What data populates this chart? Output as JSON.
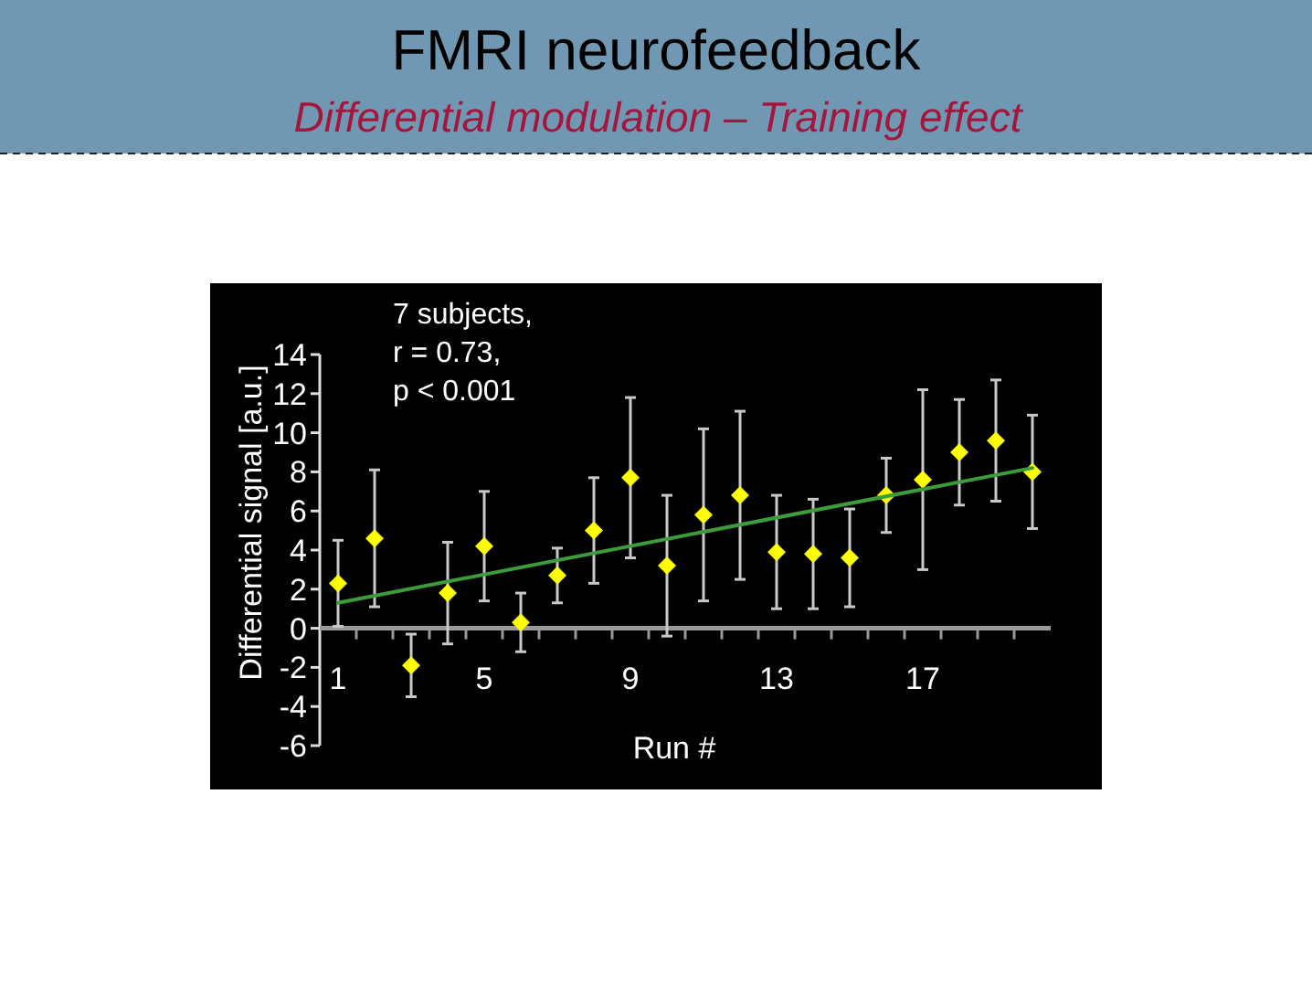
{
  "chart_data": {
    "type": "scatter",
    "title": "FMRI neurofeedback",
    "subtitle": "Differential modulation – Training effect",
    "xlabel": "Run #",
    "ylabel": "Differential signal  [a.u.]",
    "annotations": [
      "7 subjects,",
      "r = 0.73,",
      "p < 0.001"
    ],
    "x": [
      1,
      2,
      3,
      4,
      5,
      6,
      7,
      8,
      9,
      10,
      11,
      12,
      13,
      14,
      15,
      16,
      17,
      18,
      19,
      20
    ],
    "series": [
      {
        "color": "#ffff00",
        "marker": "diamond",
        "values": [
          2.3,
          4.6,
          -1.9,
          1.8,
          4.2,
          0.3,
          2.7,
          5.0,
          7.7,
          3.2,
          5.8,
          6.8,
          3.9,
          3.8,
          3.6,
          6.8,
          7.6,
          9.0,
          9.6,
          8.0
        ],
        "errors": [
          2.2,
          3.5,
          1.6,
          2.6,
          2.8,
          1.5,
          1.4,
          2.7,
          4.1,
          3.6,
          4.4,
          4.3,
          2.9,
          2.8,
          2.5,
          1.9,
          4.6,
          2.7,
          3.1,
          2.9
        ]
      },
      {
        "type": "line",
        "color": "#3c9c3c",
        "x": [
          1,
          20
        ],
        "values": [
          1.3,
          8.2
        ]
      }
    ],
    "xlim": [
      0.5,
      20.5
    ],
    "xticks": [
      1,
      {
        "value": 1.5,
        "label": null
      },
      {
        "value": 2.5,
        "label": null
      },
      {
        "value": 3.5,
        "label": null
      },
      {
        "value": 4.5,
        "label": null
      },
      5,
      {
        "value": 5.5,
        "label": null
      },
      {
        "value": 6.5,
        "label": null
      },
      {
        "value": 7.5,
        "label": null
      },
      {
        "value": 8.5,
        "label": null
      },
      9,
      {
        "value": 9.5,
        "label": null
      },
      {
        "value": 10.5,
        "label": null
      },
      {
        "value": 11.5,
        "label": null
      },
      {
        "value": 12.5,
        "label": null
      },
      13,
      {
        "value": 13.5,
        "label": null
      },
      {
        "value": 14.5,
        "label": null
      },
      {
        "value": 15.5,
        "label": null
      },
      {
        "value": 16.5,
        "label": null
      },
      17,
      {
        "value": 17.5,
        "label": null
      },
      {
        "value": 18.5,
        "label": null
      },
      {
        "value": 19.5,
        "label": null
      }
    ],
    "ylim": [
      -6,
      14
    ],
    "yticks": [
      -6,
      -4,
      -2,
      0,
      2,
      4,
      6,
      8,
      10,
      12,
      14
    ]
  }
}
